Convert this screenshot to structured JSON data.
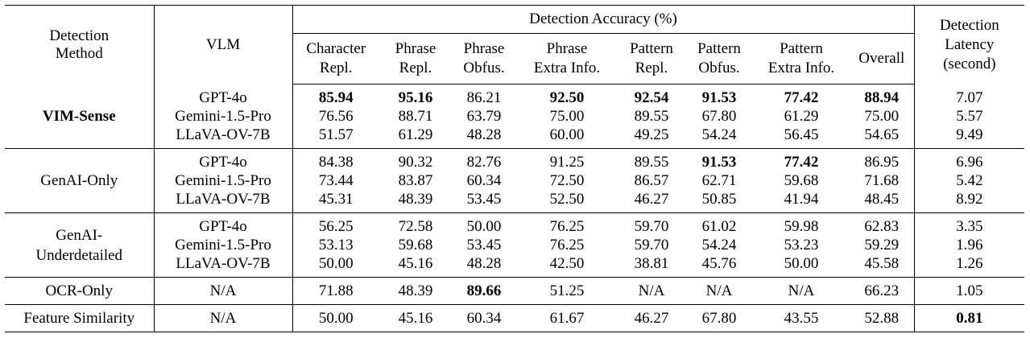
{
  "headers": {
    "method": "Detection Method",
    "vlm": "VLM",
    "accuracy_group": "Detection Accuracy (%)",
    "latency": "Detection Latency (second)",
    "columns": [
      "Character Repl.",
      "Phrase Repl.",
      "Phrase Obfus.",
      "Phrase Extra Info.",
      "Pattern Repl.",
      "Pattern Obfus.",
      "Pattern Extra Info.",
      "Overall"
    ],
    "method_lines": [
      "Detection",
      "Method"
    ],
    "latency_lines": [
      "Detection",
      "Latency",
      "(second)"
    ],
    "column_lines": [
      [
        "Character",
        "Repl."
      ],
      [
        "Phrase",
        "Repl."
      ],
      [
        "Phrase",
        "Obfus."
      ],
      [
        "Phrase",
        "Extra Info."
      ],
      [
        "Pattern",
        "Repl."
      ],
      [
        "Pattern",
        "Obfus."
      ],
      [
        "Pattern",
        "Extra Info."
      ],
      [
        "Overall"
      ]
    ]
  },
  "groups": [
    {
      "method": "VIM-Sense",
      "method_lines": [
        "VIM-Sense"
      ],
      "method_bold": true,
      "rows": [
        {
          "vlm": "GPT-4o",
          "values": [
            "85.94",
            "95.16",
            "86.21",
            "92.50",
            "92.54",
            "91.53",
            "77.42",
            "88.94",
            "7.07"
          ],
          "bold": [
            0,
            1,
            3,
            4,
            5,
            6,
            7
          ]
        },
        {
          "vlm": "Gemini-1.5-Pro",
          "values": [
            "76.56",
            "88.71",
            "63.79",
            "75.00",
            "89.55",
            "67.80",
            "61.29",
            "75.00",
            "5.57"
          ],
          "bold": []
        },
        {
          "vlm": "LLaVA-OV-7B",
          "values": [
            "51.57",
            "61.29",
            "48.28",
            "60.00",
            "49.25",
            "54.24",
            "56.45",
            "54.65",
            "9.49"
          ],
          "bold": []
        }
      ]
    },
    {
      "method": "GenAI-Only",
      "method_lines": [
        "GenAI-Only"
      ],
      "method_bold": false,
      "rows": [
        {
          "vlm": "GPT-4o",
          "values": [
            "84.38",
            "90.32",
            "82.76",
            "91.25",
            "89.55",
            "91.53",
            "77.42",
            "86.95",
            "6.96"
          ],
          "bold": [
            5,
            6
          ]
        },
        {
          "vlm": "Gemini-1.5-Pro",
          "values": [
            "73.44",
            "83.87",
            "60.34",
            "72.50",
            "86.57",
            "62.71",
            "59.68",
            "71.68",
            "5.42"
          ],
          "bold": []
        },
        {
          "vlm": "LLaVA-OV-7B",
          "values": [
            "45.31",
            "48.39",
            "53.45",
            "52.50",
            "46.27",
            "50.85",
            "41.94",
            "48.45",
            "8.92"
          ],
          "bold": []
        }
      ]
    },
    {
      "method": "GenAI-Underdetailed",
      "method_lines": [
        "GenAI-",
        "Underdetailed"
      ],
      "method_bold": false,
      "rows": [
        {
          "vlm": "GPT-4o",
          "values": [
            "56.25",
            "72.58",
            "50.00",
            "76.25",
            "59.70",
            "61.02",
            "59.98",
            "62.83",
            "3.35"
          ],
          "bold": []
        },
        {
          "vlm": "Gemini-1.5-Pro",
          "values": [
            "53.13",
            "59.68",
            "53.45",
            "76.25",
            "59.70",
            "54.24",
            "53.23",
            "59.29",
            "1.96"
          ],
          "bold": []
        },
        {
          "vlm": "LLaVA-OV-7B",
          "values": [
            "50.00",
            "45.16",
            "48.28",
            "42.50",
            "38.81",
            "45.76",
            "50.00",
            "45.58",
            "1.26"
          ],
          "bold": []
        }
      ]
    },
    {
      "method": "OCR-Only",
      "method_lines": [
        "OCR-Only"
      ],
      "method_bold": false,
      "rows": [
        {
          "vlm": "N/A",
          "values": [
            "71.88",
            "48.39",
            "89.66",
            "51.25",
            "N/A",
            "N/A",
            "N/A",
            "66.23",
            "1.05"
          ],
          "bold": [
            2
          ]
        }
      ]
    },
    {
      "method": "Feature Similarity",
      "method_lines": [
        "Feature Similarity"
      ],
      "method_bold": false,
      "rows": [
        {
          "vlm": "N/A",
          "values": [
            "50.00",
            "45.16",
            "60.34",
            "61.67",
            "46.27",
            "67.80",
            "43.55",
            "52.88",
            "0.81"
          ],
          "bold": [
            8
          ]
        }
      ]
    }
  ]
}
